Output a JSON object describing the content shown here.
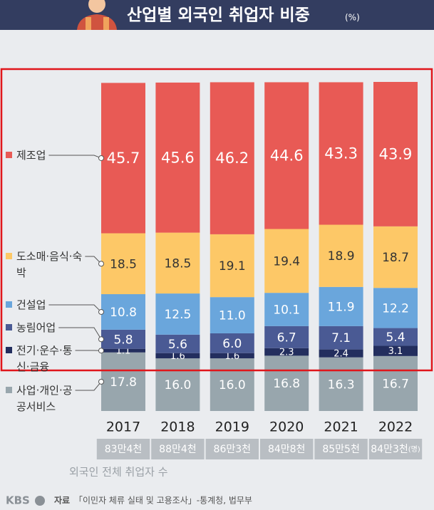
{
  "chart_data": {
    "type": "stacked_bar",
    "title": "산업별 외국인 취업자 비중",
    "title_unit": "(%)",
    "categories": [
      "2017",
      "2018",
      "2019",
      "2020",
      "2021",
      "2022"
    ],
    "ylim": [
      0,
      100
    ],
    "series": [
      {
        "name": "사업·개인·공공서비스",
        "color": "#98a6ad",
        "label_color": "#ffffff",
        "values": [
          17.8,
          16,
          16,
          16.8,
          16.3,
          16.7
        ],
        "value_labels": [
          "17.8",
          "16.0",
          "16.0",
          "16.8",
          "16.3",
          "16.7"
        ]
      },
      {
        "name": "전기·운수·통신·금융",
        "color": "#232e5e",
        "label_color": "#ffffff",
        "values": [
          1.1,
          1.6,
          1.6,
          2.3,
          2.4,
          3.1
        ],
        "value_labels": [
          "1.1",
          "1.6",
          "1.6",
          "2.3",
          "2.4",
          "3.1"
        ]
      },
      {
        "name": "농림어업",
        "color": "#4a5a94",
        "label_color": "#ffffff",
        "values": [
          5.8,
          5.6,
          6,
          6.7,
          7.1,
          5.4
        ],
        "value_labels": [
          "5.8",
          "5.6",
          "6.0",
          "6.7",
          "7.1",
          "5.4"
        ]
      },
      {
        "name": "건설업",
        "color": "#6aa6dc",
        "label_color": "#ffffff",
        "values": [
          10.8,
          12.5,
          11,
          10.1,
          11.9,
          12.2
        ],
        "value_labels": [
          "10.8",
          "12.5",
          "11.0",
          "10.1",
          "11.9",
          "12.2"
        ]
      },
      {
        "name": "도소매·음식·숙박",
        "color": "#fdc867",
        "label_color": "#333333",
        "values": [
          18.5,
          18.5,
          19.1,
          19.4,
          18.9,
          18.7
        ],
        "value_labels": [
          "18.5",
          "18.5",
          "19.1",
          "19.4",
          "18.9",
          "18.7"
        ]
      },
      {
        "name": "제조업",
        "color": "#e85a55",
        "label_color": "#ffffff",
        "values": [
          45.7,
          45.6,
          46.2,
          44.6,
          43.3,
          43.9
        ],
        "value_labels": [
          "45.7",
          "45.6",
          "46.2",
          "44.6",
          "43.3",
          "43.9"
        ]
      }
    ],
    "totals": [
      "83만4천",
      "88만4천",
      "86만3천",
      "84만8천",
      "85만5천",
      "84만3천"
    ],
    "totals_unit": "(명)",
    "totals_caption": "외국인 전체 취업자 수",
    "logo": "KBS",
    "source_label": "자료",
    "source": "「이민자 체류 실태 및 고용조사」-통계청, 법무부"
  }
}
